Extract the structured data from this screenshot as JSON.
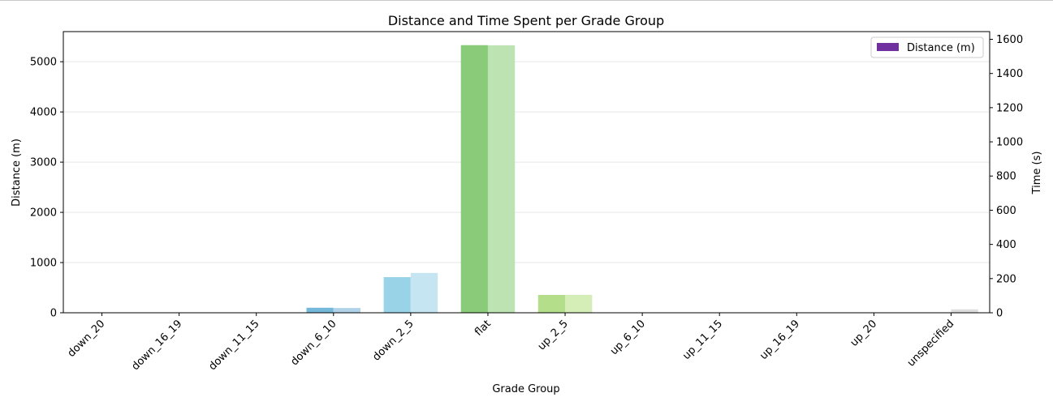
{
  "chart_data": {
    "type": "bar",
    "title": "Distance and Time Spent per Grade Group",
    "xlabel": "Grade Group",
    "ylabel_left": "Distance (m)",
    "ylabel_right": "Time (s)",
    "categories": [
      "down_20",
      "down_16_19",
      "down_11_15",
      "down_6_10",
      "down_2_5",
      "flat",
      "up_2_5",
      "up_6_10",
      "up_11_15",
      "up_16_19",
      "up_20",
      "unspecified"
    ],
    "series": [
      {
        "name": "Distance (m)",
        "axis": "left",
        "values": [
          0,
          0,
          0,
          100,
          710,
          5330,
          355,
          0,
          0,
          0,
          0,
          0
        ],
        "colors": [
          "#4575b4",
          "#4575b4",
          "#74add1",
          "#74b9d9",
          "#99d3e8",
          "#8acb7a",
          "#b5de8a",
          "#a6d96a",
          "#a6d96a",
          "#a6d96a",
          "#a6d96a",
          "#cccccc"
        ]
      },
      {
        "name": "",
        "axis": "right",
        "values": [
          0,
          0,
          0,
          28,
          233,
          1565,
          105,
          0,
          0,
          0,
          0,
          20
        ],
        "colors": [
          "#a8c4e0",
          "#a8c4e0",
          "#b4d4ea",
          "#b0d3e9",
          "#c5e5f2",
          "#bee3b2",
          "#d5edb6",
          "#d5edb6",
          "#d5edb6",
          "#d5edb6",
          "#d5edb6",
          "#dddddd"
        ]
      }
    ],
    "y_left": {
      "lim": [
        0,
        5600
      ],
      "ticks": [
        0,
        1000,
        2000,
        3000,
        4000,
        5000
      ]
    },
    "y_right": {
      "lim": [
        0,
        1645
      ],
      "ticks": [
        0,
        200,
        400,
        600,
        800,
        1000,
        1200,
        1400,
        1600
      ]
    },
    "grid": "horizontal",
    "legend": {
      "placement": "top-right",
      "entries": [
        {
          "label": "Distance (m)",
          "color": "#7030a0"
        }
      ]
    }
  }
}
